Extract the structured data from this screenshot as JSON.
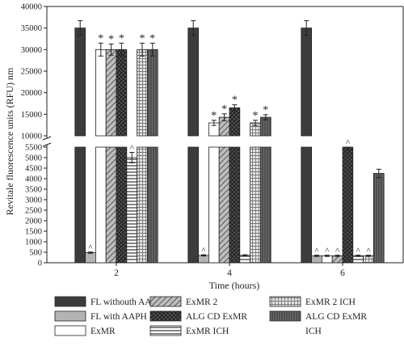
{
  "chart_data": {
    "type": "bar",
    "xlabel": "Time (hours)",
    "ylabel": "Revitale fluorescence units (RFU) nm",
    "axis_break": {
      "between": [
        5500,
        10000
      ]
    },
    "ylim": [
      0,
      40000
    ],
    "yticks_lower": [
      "0",
      "500",
      "1000",
      "1500",
      "2000",
      "2500",
      "3000",
      "3500",
      "4000",
      "4500",
      "5000",
      "5500"
    ],
    "yticks_upper": [
      "10000",
      "15000",
      "20000",
      "25000",
      "30000",
      "35000",
      "40000"
    ],
    "categories": [
      "2",
      "4",
      "6"
    ],
    "series": [
      {
        "name": "FL withouth AAPH",
        "values": [
          35000,
          35000,
          35000
        ],
        "errors": [
          1700,
          1700,
          1700
        ],
        "sig": [
          "",
          "",
          ""
        ]
      },
      {
        "name": "FL with AAPH",
        "values": [
          480,
          350,
          330
        ],
        "errors": [
          30,
          30,
          30
        ],
        "sig": [
          "^",
          "^",
          "^"
        ]
      },
      {
        "name": "ExMR",
        "values": [
          30000,
          13000,
          330
        ],
        "errors": [
          1500,
          600,
          30
        ],
        "sig": [
          "*",
          "*",
          "^"
        ]
      },
      {
        "name": "ExMR 2",
        "values": [
          30000,
          14300,
          330
        ],
        "errors": [
          1300,
          800,
          30
        ],
        "sig": [
          "*",
          "*",
          "^"
        ]
      },
      {
        "name": "ALG CD ExMR",
        "values": [
          30000,
          16500,
          5600
        ],
        "errors": [
          1500,
          700,
          250
        ],
        "sig": [
          "*",
          "*",
          "^"
        ]
      },
      {
        "name": "ExMR ICH",
        "values": [
          5000,
          350,
          330
        ],
        "errors": [
          250,
          30,
          30
        ],
        "sig": [
          "^",
          "",
          "^"
        ]
      },
      {
        "name": "ExMR 2 ICH",
        "values": [
          30000,
          13000,
          330
        ],
        "errors": [
          1500,
          600,
          30
        ],
        "sig": [
          "*",
          "*",
          "^"
        ]
      },
      {
        "name": "ALG CD ExMR ICH",
        "values": [
          30000,
          14300,
          4250
        ],
        "errors": [
          1500,
          600,
          200
        ],
        "sig": [
          "*",
          "*",
          ""
        ]
      }
    ],
    "series_patterns": [
      "dark",
      "light",
      "white",
      "diag",
      "cross",
      "hlines",
      "grid",
      "vlines"
    ],
    "legend": {
      "placement": "bottom",
      "rows": [
        [
          "FL withouth AAPH",
          "ExMR 2",
          "ExMR 2 ICH"
        ],
        [
          "FL with AAPH",
          "ALG CD ExMR",
          "ALG CD ExMR"
        ],
        [
          "ExMR",
          "ExMR ICH",
          "ICH"
        ]
      ]
    }
  }
}
